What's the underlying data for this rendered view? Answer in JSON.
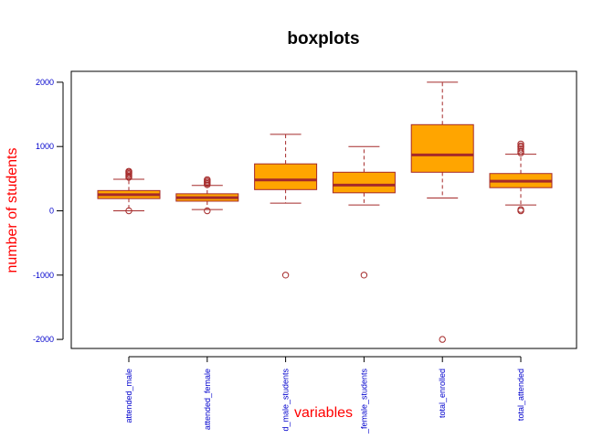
{
  "chart_data": {
    "type": "boxplot",
    "title": "boxplots",
    "xlabel": "variables",
    "ylabel": "number of students",
    "ylim": [
      -2150,
      2200
    ],
    "yticks": [
      -2000,
      -1000,
      0,
      1000,
      2000
    ],
    "ytick_labels": [
      "-2000",
      "-1000",
      "0",
      "1000",
      "2000"
    ],
    "grid": false,
    "colors": {
      "box_fill": "#FFA500",
      "box_border": "#A52A2A",
      "tick_labels": "#0000CD",
      "axis_labels": "#FF0000",
      "frame": "#000000"
    },
    "categories": [
      "attended_male",
      "attended_female",
      "d_male_students",
      "_female_students",
      "total_enrolled",
      "total_attended"
    ],
    "boxes": [
      {
        "whisker_low": 0,
        "q1": 190,
        "median": 250,
        "q3": 315,
        "whisker_high": 490,
        "outliers": [
          0,
          520,
          540,
          560,
          580,
          600,
          615
        ]
      },
      {
        "whisker_low": 20,
        "q1": 150,
        "median": 205,
        "q3": 265,
        "whisker_high": 395,
        "outliers": [
          0,
          405,
          425,
          445,
          465,
          485
        ]
      },
      {
        "whisker_low": 120,
        "q1": 330,
        "median": 480,
        "q3": 730,
        "whisker_high": 1190,
        "outliers": [
          -1000
        ]
      },
      {
        "whisker_low": 90,
        "q1": 280,
        "median": 400,
        "q3": 600,
        "whisker_high": 1000,
        "outliers": [
          -1000
        ]
      },
      {
        "whisker_low": 200,
        "q1": 600,
        "median": 870,
        "q3": 1340,
        "whisker_high": 2000,
        "outliers": [
          -2000
        ]
      },
      {
        "whisker_low": 90,
        "q1": 360,
        "median": 460,
        "q3": 580,
        "whisker_high": 880,
        "outliers": [
          0,
          20,
          900,
          930,
          960,
          990,
          1010,
          1040
        ]
      }
    ]
  }
}
